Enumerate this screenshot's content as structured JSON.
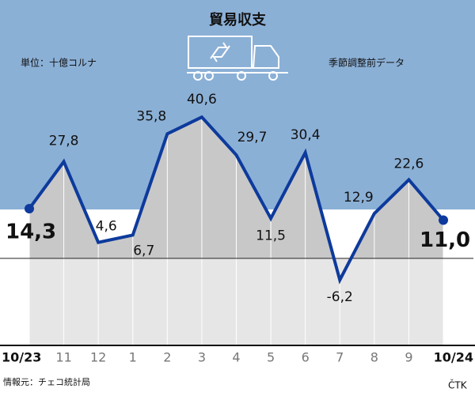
{
  "chart_data": {
    "type": "line",
    "title": "貿易収支",
    "unit_note": "単位：十億コルナ",
    "data_note": "季節調整前データ",
    "source": "情報元：チェコ統計局",
    "credit": "ČTK",
    "categories": [
      "10/23",
      "11",
      "12",
      "1",
      "2",
      "3",
      "4",
      "5",
      "6",
      "7",
      "8",
      "9",
      "10/24"
    ],
    "series": [
      {
        "name": "貿易収支",
        "color": "#0d3a9c",
        "values": [
          14.3,
          27.8,
          4.6,
          6.7,
          35.8,
          40.6,
          29.7,
          11.5,
          30.4,
          -6.2,
          12.9,
          22.6,
          11.0
        ],
        "value_labels": [
          "14,3",
          "27,8",
          "4,6",
          "6,7",
          "35,8",
          "40,6",
          "29,7",
          "11,5",
          "30,4",
          "-6,2",
          "12,9",
          "22,6",
          "11,0"
        ]
      }
    ],
    "ylim": [
      -25,
      47
    ]
  }
}
